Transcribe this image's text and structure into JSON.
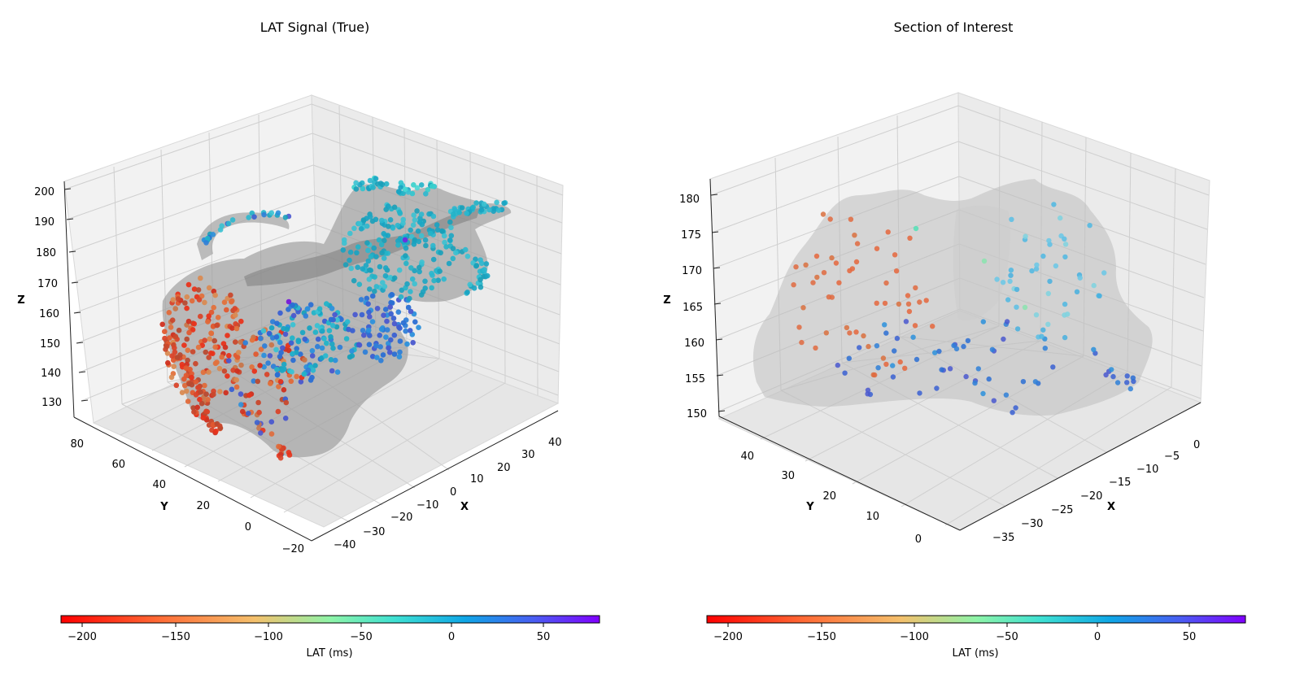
{
  "chart_data": [
    {
      "type": "scatter",
      "variant": "3d-scatter-with-surface",
      "title": "LAT Signal (True)",
      "xlabel": "X",
      "ylabel": "Y",
      "zlabel": "Z",
      "xlim": [
        -45,
        45
      ],
      "ylim": [
        -22,
        88
      ],
      "zlim": [
        125,
        205
      ],
      "xticks": [
        -40,
        -30,
        -20,
        -10,
        0,
        10,
        20,
        30,
        40
      ],
      "yticks": [
        -20,
        0,
        20,
        40,
        60,
        80
      ],
      "zticks": [
        130,
        140,
        150,
        160,
        170,
        180,
        190,
        200
      ],
      "surface": "gray translucent atrial mesh",
      "points_note": "~900 LAT sample points colored by LAT (ms)",
      "colorbar": {
        "label": "LAT (ms)",
        "range": [
          -210,
          78
        ],
        "ticks": [
          -200,
          -150,
          -100,
          -50,
          0,
          50
        ],
        "colormap": "rainbow_r"
      },
      "grid": true
    },
    {
      "type": "scatter",
      "variant": "3d-scatter-with-surface",
      "title": "Section of Interest",
      "xlabel": "X",
      "ylabel": "Y",
      "zlabel": "Z",
      "xlim": [
        -37,
        2
      ],
      "ylim": [
        -2,
        48
      ],
      "zlim": [
        149,
        182
      ],
      "xticks": [
        -35,
        -30,
        -25,
        -20,
        -15,
        -10,
        -5,
        0
      ],
      "yticks": [
        0,
        10,
        20,
        30,
        40
      ],
      "zticks": [
        150,
        155,
        160,
        165,
        170,
        175,
        180
      ],
      "surface": "light gray translucent section mesh",
      "points_note": "~140 LAT sample points colored by LAT (ms)",
      "colorbar": {
        "label": "LAT (ms)",
        "range": [
          -210,
          78
        ],
        "ticks": [
          -200,
          -150,
          -100,
          -50,
          0,
          50
        ],
        "colormap": "rainbow_r"
      },
      "grid": true
    }
  ]
}
